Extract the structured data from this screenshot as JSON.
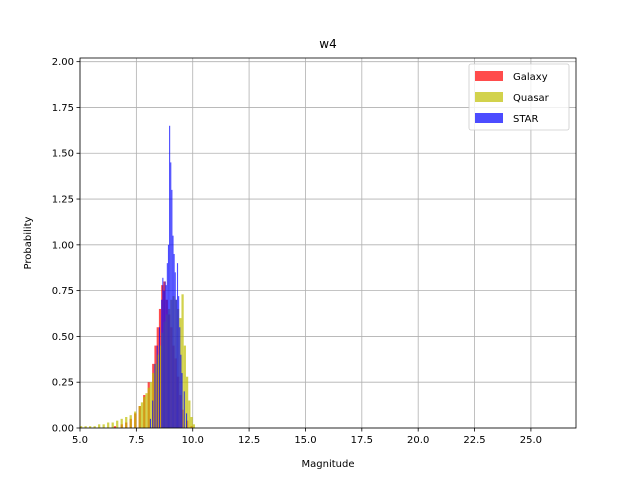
{
  "chart_data": {
    "type": "bar",
    "title": "w4",
    "xlabel": "Magnitude",
    "ylabel": "Probability",
    "xlim": [
      5.0,
      27.0
    ],
    "ylim": [
      0.0,
      2.02
    ],
    "xticks": [
      "5.0",
      "7.5",
      "10.0",
      "12.5",
      "15.0",
      "17.5",
      "20.0",
      "22.5",
      "25.0"
    ],
    "xtick_values": [
      5.0,
      7.5,
      10.0,
      12.5,
      15.0,
      17.5,
      20.0,
      22.5,
      25.0
    ],
    "yticks": [
      "0.00",
      "0.25",
      "0.50",
      "0.75",
      "1.00",
      "1.25",
      "1.50",
      "1.75",
      "2.00"
    ],
    "ytick_values": [
      0.0,
      0.25,
      0.5,
      0.75,
      1.0,
      1.25,
      1.5,
      1.75,
      2.0
    ],
    "grid": true,
    "legend_position": "top-right",
    "series": [
      {
        "name": "Galaxy",
        "color": "#ff0000",
        "bin_width": 0.1,
        "bins": [
          [
            6.5,
            0.01
          ],
          [
            6.8,
            0.02
          ],
          [
            7.0,
            0.03
          ],
          [
            7.2,
            0.05
          ],
          [
            7.4,
            0.08
          ],
          [
            7.6,
            0.12
          ],
          [
            7.8,
            0.18
          ],
          [
            8.0,
            0.25
          ],
          [
            8.2,
            0.35
          ],
          [
            8.3,
            0.45
          ],
          [
            8.4,
            0.55
          ],
          [
            8.5,
            0.65
          ],
          [
            8.6,
            0.78
          ],
          [
            8.7,
            0.8
          ],
          [
            8.8,
            0.7
          ],
          [
            8.9,
            0.62
          ],
          [
            9.0,
            0.55
          ],
          [
            9.1,
            0.45
          ],
          [
            9.2,
            0.38
          ],
          [
            9.3,
            0.28
          ],
          [
            9.4,
            0.18
          ],
          [
            9.5,
            0.1
          ],
          [
            9.7,
            0.04
          ],
          [
            9.9,
            0.01
          ]
        ]
      },
      {
        "name": "Quasar",
        "color": "#bfbf00",
        "bin_width": 0.1,
        "bins": [
          [
            5.0,
            0.01
          ],
          [
            5.2,
            0.01
          ],
          [
            5.4,
            0.01
          ],
          [
            5.6,
            0.01
          ],
          [
            5.8,
            0.02
          ],
          [
            6.0,
            0.02
          ],
          [
            6.2,
            0.03
          ],
          [
            6.4,
            0.03
          ],
          [
            6.6,
            0.04
          ],
          [
            6.8,
            0.05
          ],
          [
            7.0,
            0.06
          ],
          [
            7.2,
            0.07
          ],
          [
            7.4,
            0.09
          ],
          [
            7.6,
            0.12
          ],
          [
            7.7,
            0.14
          ],
          [
            7.8,
            0.17
          ],
          [
            7.9,
            0.19
          ],
          [
            8.0,
            0.22
          ],
          [
            8.1,
            0.25
          ],
          [
            8.2,
            0.3
          ],
          [
            8.3,
            0.35
          ],
          [
            8.4,
            0.4
          ],
          [
            8.5,
            0.45
          ],
          [
            8.6,
            0.52
          ],
          [
            8.7,
            0.58
          ],
          [
            8.8,
            0.62
          ],
          [
            8.9,
            0.65
          ],
          [
            9.0,
            0.7
          ],
          [
            9.1,
            0.72
          ],
          [
            9.2,
            0.7
          ],
          [
            9.3,
            0.65
          ],
          [
            9.4,
            0.6
          ],
          [
            9.5,
            0.73
          ],
          [
            9.6,
            0.45
          ],
          [
            9.7,
            0.28
          ],
          [
            9.8,
            0.15
          ],
          [
            9.9,
            0.06
          ],
          [
            10.0,
            0.02
          ]
        ]
      },
      {
        "name": "STAR",
        "color": "#0000ff",
        "bin_width": 0.05,
        "bins": [
          [
            8.1,
            0.05
          ],
          [
            8.2,
            0.15
          ],
          [
            8.3,
            0.35
          ],
          [
            8.4,
            0.45
          ],
          [
            8.5,
            0.55
          ],
          [
            8.6,
            0.7
          ],
          [
            8.65,
            0.82
          ],
          [
            8.7,
            0.75
          ],
          [
            8.75,
            0.8
          ],
          [
            8.8,
            0.78
          ],
          [
            8.85,
            0.9
          ],
          [
            8.9,
            1.0
          ],
          [
            8.95,
            1.65
          ],
          [
            9.0,
            1.45
          ],
          [
            9.05,
            1.3
          ],
          [
            9.1,
            1.05
          ],
          [
            9.15,
            0.95
          ],
          [
            9.2,
            0.85
          ],
          [
            9.25,
            0.7
          ],
          [
            9.3,
            0.9
          ],
          [
            9.35,
            0.72
          ],
          [
            9.4,
            0.55
          ],
          [
            9.45,
            0.4
          ],
          [
            9.5,
            0.3
          ],
          [
            9.6,
            0.2
          ],
          [
            9.7,
            0.08
          ]
        ]
      }
    ]
  }
}
